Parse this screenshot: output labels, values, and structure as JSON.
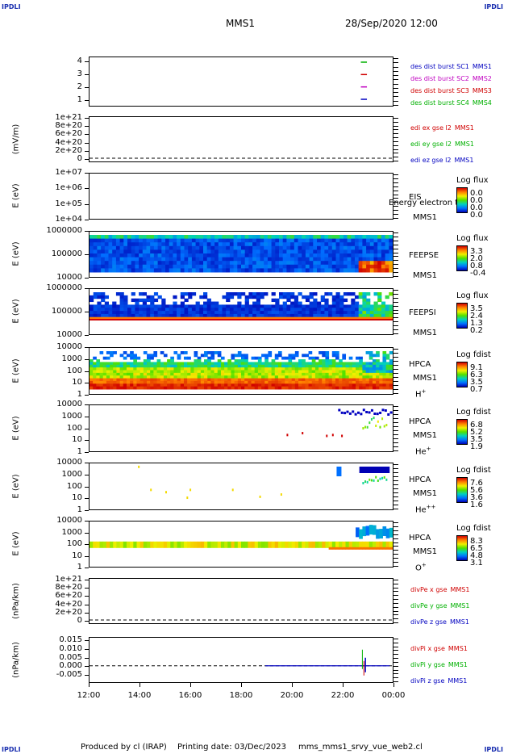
{
  "corners": {
    "tl": "IPDLI",
    "tr": "IPDLI",
    "bl": "IPDLI",
    "br": "IPDLI"
  },
  "header": {
    "spacecraft": "MMS1",
    "datetime": "28/Sep/2020 12:00"
  },
  "footer": {
    "produced": "Produced by cl (IRAP)",
    "printing": "Printing date: 03/Dec/2023",
    "file": "mms_mms1_srvy_vue_web2.cl"
  },
  "x_ticks": [
    "12:00",
    "14:00",
    "16:00",
    "18:00",
    "20:00",
    "22:00",
    "00:00"
  ],
  "panels": [
    {
      "id": "burst",
      "ylabel": "",
      "ticks": [
        "4",
        "3",
        "2",
        "1"
      ],
      "legend": [
        {
          "text": "des dist burst SC1",
          "sc": "MMS1",
          "color": "#0000c0"
        },
        {
          "text": "des dist burst SC2",
          "sc": "MMS2",
          "color": "#c000c0"
        },
        {
          "text": "des dist burst SC3",
          "sc": "MMS3",
          "color": "#d00000"
        },
        {
          "text": "des dist burst SC4",
          "sc": "MMS4",
          "color": "#00b000"
        }
      ]
    },
    {
      "id": "edi",
      "ylabel": "(mV/m)",
      "ticks": [
        "1e+21",
        "8e+20",
        "6e+20",
        "4e+20",
        "2e+20",
        "0"
      ],
      "legend": [
        {
          "text": "edi ex gse l2",
          "sc": "MMS1",
          "color": "#d00000"
        },
        {
          "text": "edi ey gse l2",
          "sc": "MMS1",
          "color": "#00b000"
        },
        {
          "text": "edi ez gse l2",
          "sc": "MMS1",
          "color": "#0000c0"
        }
      ]
    },
    {
      "id": "eis",
      "ylabel": "E (eV)",
      "ticks": [
        "1e+07",
        "1e+06",
        "1e+05",
        "1e+04"
      ],
      "inst": "EIS",
      "sc": "MMS1",
      "overlay": "Energy electron to",
      "cbtitle": "Log flux",
      "cbvals": [
        "0.0",
        "0.0",
        "0.0",
        "0.0"
      ]
    },
    {
      "id": "feepse",
      "ylabel": "E (eV)",
      "ticks": [
        "1000000",
        "100000",
        "10000"
      ],
      "inst": "FEEPSE",
      "sc": "MMS1",
      "cbtitle": "Log flux",
      "cbvals": [
        "3.3",
        "2.0",
        "0.8",
        "-0.4"
      ]
    },
    {
      "id": "feepsi",
      "ylabel": "E (eV)",
      "ticks": [
        "1000000",
        "100000",
        "10000"
      ],
      "inst": "FEEPSI",
      "sc": "MMS1",
      "cbtitle": "Log flux",
      "cbvals": [
        "3.5",
        "2.4",
        "1.3",
        "0.2"
      ]
    },
    {
      "id": "hpca_h",
      "ylabel": "E (eV)",
      "ticks": [
        "10000",
        "1000",
        "100",
        "10",
        "1"
      ],
      "inst": "HPCA",
      "sc": "MMS1",
      "species": "H",
      "charge": "+",
      "cbtitle": "Log fdist",
      "cbvals": [
        "9.1",
        "6.3",
        "3.5",
        "0.7"
      ]
    },
    {
      "id": "hpca_he",
      "ylabel": "E (eV)",
      "ticks": [
        "10000",
        "1000",
        "100",
        "10",
        "1"
      ],
      "inst": "HPCA",
      "sc": "MMS1",
      "species": "He",
      "charge": "+",
      "cbtitle": "Log fdist",
      "cbvals": [
        "6.8",
        "5.2",
        "3.5",
        "1.9"
      ]
    },
    {
      "id": "hpca_hepp",
      "ylabel": "E (eV)",
      "ticks": [
        "10000",
        "1000",
        "100",
        "10",
        "1"
      ],
      "inst": "HPCA",
      "sc": "MMS1",
      "species": "He",
      "charge": "++",
      "cbtitle": "Log fdist",
      "cbvals": [
        "7.6",
        "5.6",
        "3.6",
        "1.6"
      ]
    },
    {
      "id": "hpca_o",
      "ylabel": "E (eV)",
      "ticks": [
        "10000",
        "1000",
        "100",
        "10",
        "1"
      ],
      "inst": "HPCA",
      "sc": "MMS1",
      "species": "O",
      "charge": "+",
      "cbtitle": "Log fdist",
      "cbvals": [
        "8.3",
        "6.5",
        "4.8",
        "3.1"
      ]
    },
    {
      "id": "divpe",
      "ylabel": "(nPa/km)",
      "ticks": [
        "1e+21",
        "8e+20",
        "6e+20",
        "4e+20",
        "2e+20",
        "0"
      ],
      "legend": [
        {
          "text": "divPe x gse",
          "sc": "MMS1",
          "color": "#d00000"
        },
        {
          "text": "divPe y gse",
          "sc": "MMS1",
          "color": "#00b000"
        },
        {
          "text": "divPe z gse",
          "sc": "MMS1",
          "color": "#0000c0"
        }
      ]
    },
    {
      "id": "divpi",
      "ylabel": "(nPa/km)",
      "ticks": [
        "0.015",
        "0.010",
        "0.005",
        "0.000",
        "-0.005"
      ],
      "legend": [
        {
          "text": "divPi x gse",
          "sc": "MMS1",
          "color": "#d00000"
        },
        {
          "text": "divPi y gse",
          "sc": "MMS1",
          "color": "#00b000"
        },
        {
          "text": "divPi z gse",
          "sc": "MMS1",
          "color": "#0000c0"
        }
      ]
    }
  ],
  "chart_data": {
    "type": "heatmap",
    "x_range": [
      "2020-09-28T12:00",
      "2020-09-29T00:00"
    ],
    "burst_intervals": [
      {
        "sc": 1,
        "x": "22:48"
      },
      {
        "sc": 2,
        "x": "22:48"
      },
      {
        "sc": 3,
        "x": "22:48"
      },
      {
        "sc": 4,
        "x": "22:48"
      }
    ],
    "divpi_z_spike": {
      "time": "22:48",
      "max": 0.013,
      "min": -0.003
    }
  }
}
